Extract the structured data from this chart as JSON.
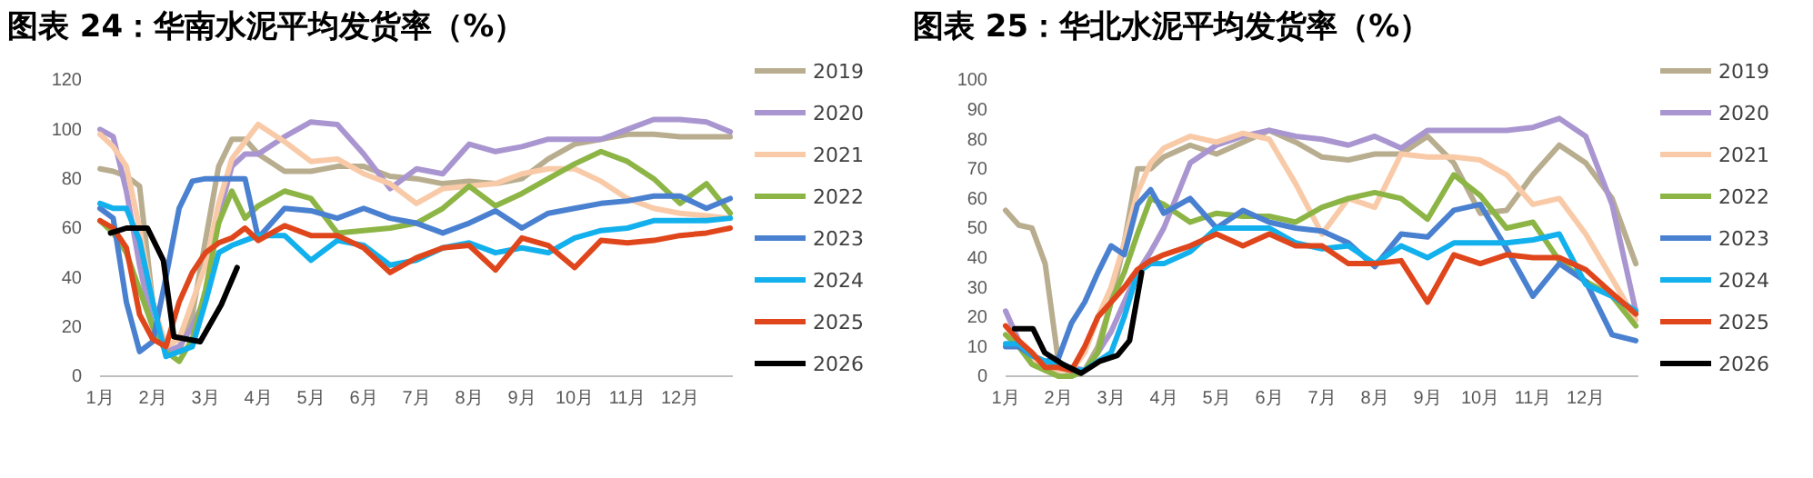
{
  "chart_data": [
    {
      "type": "line",
      "title": "图表 24：华南水泥平均发货率（%）",
      "legend": "right",
      "xlim": [
        1,
        13
      ],
      "xticks": [
        {
          "value": 1,
          "label": "1月"
        },
        {
          "value": 2,
          "label": "2月"
        },
        {
          "value": 3,
          "label": "3月"
        },
        {
          "value": 4,
          "label": "4月"
        },
        {
          "value": 5,
          "label": "5月"
        },
        {
          "value": 6,
          "label": "6月"
        },
        {
          "value": 7,
          "label": "7月"
        },
        {
          "value": 8,
          "label": "8月"
        },
        {
          "value": 9,
          "label": "9月"
        },
        {
          "value": 10,
          "label": "10月"
        },
        {
          "value": 11,
          "label": "11月"
        },
        {
          "value": 12,
          "label": "12月"
        }
      ],
      "ylim": [
        0,
        120
      ],
      "yticks": [
        0,
        20,
        40,
        60,
        80,
        100,
        120
      ],
      "x": [
        1,
        1.25,
        1.5,
        1.75,
        2,
        2.25,
        2.5,
        2.75,
        3,
        3.25,
        3.5,
        3.75,
        4,
        4.5,
        5,
        5.5,
        6,
        6.5,
        7,
        7.5,
        8,
        8.5,
        9,
        9.5,
        10,
        10.5,
        11,
        11.5,
        12,
        12.5,
        12.95
      ],
      "series": [
        {
          "name": "2019",
          "color": "#b8ad8e",
          "values": [
            84,
            83,
            81,
            77,
            30,
            10,
            10,
            25,
            55,
            85,
            96,
            96,
            90,
            83,
            83,
            85,
            85,
            81,
            80,
            78,
            79,
            78,
            80,
            88,
            94,
            96,
            98,
            98,
            97,
            97,
            97
          ]
        },
        {
          "name": "2020",
          "color": "#a995d0",
          "values": [
            100,
            97,
            75,
            45,
            20,
            10,
            12,
            20,
            32,
            65,
            85,
            90,
            90,
            97,
            103,
            102,
            90,
            76,
            84,
            82,
            94,
            91,
            93,
            96,
            96,
            96,
            100,
            104,
            104,
            103,
            99
          ]
        },
        {
          "name": "2021",
          "color": "#f9caa8",
          "values": [
            98,
            93,
            85,
            60,
            30,
            12,
            15,
            30,
            45,
            70,
            88,
            95,
            102,
            95,
            87,
            88,
            82,
            78,
            70,
            76,
            77,
            78,
            82,
            84,
            84,
            79,
            72,
            68,
            66,
            65,
            64
          ]
        },
        {
          "name": "2022",
          "color": "#8cb545",
          "values": [
            63,
            58,
            50,
            35,
            20,
            10,
            6,
            15,
            35,
            62,
            75,
            64,
            69,
            75,
            72,
            58,
            59,
            60,
            62,
            68,
            77,
            69,
            74,
            80,
            86,
            91,
            87,
            80,
            70,
            78,
            66
          ]
        },
        {
          "name": "2023",
          "color": "#4a80d0",
          "values": [
            68,
            64,
            30,
            10,
            14,
            40,
            68,
            79,
            80,
            80,
            80,
            80,
            56,
            68,
            67,
            64,
            68,
            64,
            62,
            58,
            62,
            67,
            60,
            66,
            68,
            70,
            71,
            73,
            73,
            68,
            72
          ]
        },
        {
          "name": "2024",
          "color": "#12b0ec",
          "values": [
            70,
            68,
            68,
            55,
            30,
            8,
            10,
            12,
            30,
            50,
            53,
            55,
            57,
            57,
            47,
            55,
            53,
            45,
            47,
            52,
            54,
            50,
            52,
            50,
            56,
            59,
            60,
            63,
            63,
            63,
            64
          ]
        },
        {
          "name": "2025",
          "color": "#e0461c",
          "values": [
            63,
            60,
            52,
            25,
            15,
            12,
            30,
            42,
            50,
            54,
            56,
            60,
            55,
            61,
            57,
            57,
            52,
            42,
            48,
            52,
            53,
            43,
            56,
            53,
            44,
            55,
            54,
            55,
            57,
            58,
            60
          ]
        },
        {
          "name": "2026",
          "color": "#000000",
          "x": [
            1.2,
            1.5,
            1.9,
            2.2,
            2.4,
            2.9,
            3.3,
            3.6
          ],
          "values": [
            58,
            60,
            60,
            47,
            16,
            14,
            29,
            44
          ]
        }
      ]
    },
    {
      "type": "line",
      "title": "图表 25：华北水泥平均发货率（%）",
      "legend": "right",
      "xlim": [
        1,
        13
      ],
      "xticks": [
        {
          "value": 1,
          "label": "1月"
        },
        {
          "value": 2,
          "label": "2月"
        },
        {
          "value": 3,
          "label": "3月"
        },
        {
          "value": 4,
          "label": "4月"
        },
        {
          "value": 5,
          "label": "5月"
        },
        {
          "value": 6,
          "label": "6月"
        },
        {
          "value": 7,
          "label": "7月"
        },
        {
          "value": 8,
          "label": "8月"
        },
        {
          "value": 9,
          "label": "9月"
        },
        {
          "value": 10,
          "label": "10月"
        },
        {
          "value": 11,
          "label": "11月"
        },
        {
          "value": 12,
          "label": "12月"
        }
      ],
      "ylim": [
        0,
        100
      ],
      "yticks": [
        0,
        10,
        20,
        30,
        40,
        50,
        60,
        70,
        80,
        90,
        100
      ],
      "x": [
        1,
        1.25,
        1.5,
        1.75,
        2,
        2.25,
        2.5,
        2.75,
        3,
        3.25,
        3.5,
        3.75,
        4,
        4.5,
        5,
        5.5,
        6,
        6.5,
        7,
        7.5,
        8,
        8.5,
        9,
        9.5,
        10,
        10.5,
        11,
        11.5,
        12,
        12.5,
        12.95
      ],
      "series": [
        {
          "name": "2019",
          "color": "#b8ad8e",
          "values": [
            56,
            51,
            50,
            38,
            5,
            0,
            2,
            10,
            25,
            45,
            70,
            70,
            74,
            78,
            75,
            79,
            83,
            79,
            74,
            73,
            75,
            75,
            81,
            72,
            55,
            56,
            68,
            78,
            72,
            60,
            38
          ]
        },
        {
          "name": "2020",
          "color": "#a995d0",
          "values": [
            22,
            12,
            6,
            2,
            2,
            3,
            2,
            8,
            15,
            25,
            35,
            42,
            50,
            72,
            78,
            81,
            83,
            81,
            80,
            78,
            81,
            77,
            83,
            83,
            83,
            83,
            84,
            87,
            81,
            58,
            22
          ]
        },
        {
          "name": "2021",
          "color": "#f9caa8",
          "values": [
            17,
            12,
            6,
            3,
            2,
            2,
            8,
            20,
            30,
            45,
            62,
            72,
            77,
            81,
            79,
            82,
            80,
            65,
            48,
            60,
            57,
            75,
            74,
            74,
            73,
            68,
            58,
            60,
            48,
            33,
            19
          ]
        },
        {
          "name": "2022",
          "color": "#8cb545",
          "values": [
            14,
            10,
            4,
            2,
            0,
            0,
            2,
            8,
            25,
            35,
            48,
            60,
            58,
            52,
            55,
            54,
            54,
            52,
            57,
            60,
            62,
            60,
            53,
            68,
            61,
            50,
            52,
            39,
            32,
            27,
            17
          ]
        },
        {
          "name": "2023",
          "color": "#4a80d0",
          "values": [
            10,
            10,
            7,
            5,
            6,
            18,
            25,
            35,
            44,
            41,
            58,
            63,
            55,
            60,
            50,
            56,
            52,
            50,
            49,
            45,
            37,
            48,
            47,
            56,
            58,
            43,
            27,
            38,
            32,
            14,
            12
          ]
        },
        {
          "name": "2024",
          "color": "#12b0ec",
          "values": [
            11,
            11,
            7,
            5,
            4,
            2,
            2,
            5,
            8,
            20,
            35,
            38,
            38,
            42,
            50,
            50,
            50,
            45,
            43,
            44,
            38,
            44,
            40,
            45,
            45,
            45,
            46,
            48,
            31,
            27,
            22
          ]
        },
        {
          "name": "2025",
          "color": "#e0461c",
          "values": [
            17,
            12,
            8,
            3,
            3,
            2,
            10,
            20,
            25,
            30,
            36,
            39,
            41,
            44,
            48,
            44,
            48,
            44,
            44,
            38,
            38,
            39,
            25,
            41,
            38,
            41,
            40,
            40,
            36,
            28,
            21
          ]
        },
        {
          "name": "2026",
          "color": "#000000",
          "x": [
            1.17,
            1.52,
            1.74,
            2.09,
            2.43,
            2.78,
            3.12,
            3.35,
            3.58
          ],
          "values": [
            16,
            16,
            8,
            4,
            1,
            5,
            7,
            12,
            35
          ]
        }
      ]
    }
  ]
}
